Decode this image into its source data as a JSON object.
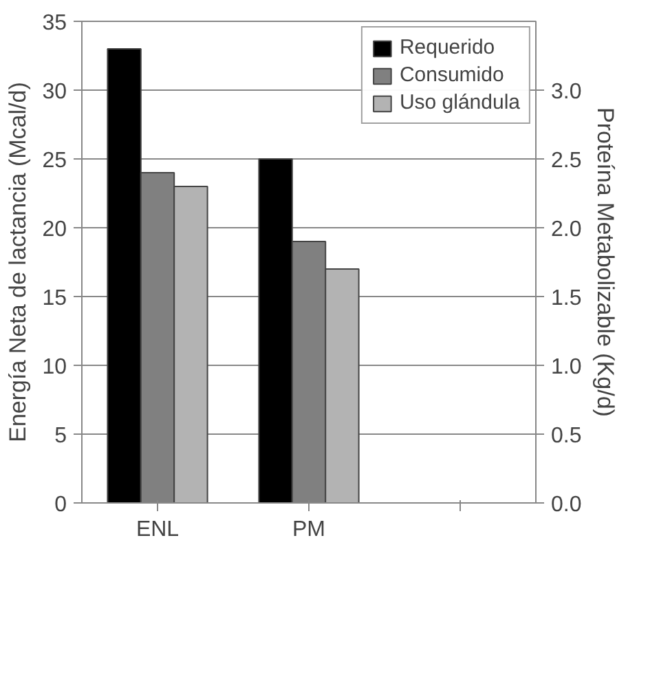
{
  "chart_data": {
    "type": "bar",
    "categories": [
      "ENL",
      "PM",
      null
    ],
    "ylabel": "Energía Neta de lactancia (Mcal/d)",
    "y2label": "Proteína Metabolizable (Kg/d)",
    "ylim": [
      0,
      35
    ],
    "yticks": [
      0,
      5,
      10,
      15,
      20,
      25,
      30,
      35
    ],
    "y2lim": [
      0,
      3.5
    ],
    "y2ticks": [
      {
        "value": 0,
        "label": "0.0"
      },
      {
        "value": 0.5,
        "label": "0.5"
      },
      {
        "value": 1,
        "label": "1.0"
      },
      {
        "value": 1.5,
        "label": "1.5"
      },
      {
        "value": 2,
        "label": "2.0"
      },
      {
        "value": 2.5,
        "label": "2.5"
      },
      {
        "value": 3,
        "label": "3.0"
      }
    ],
    "grid": "y",
    "legend": "top right",
    "series": [
      {
        "name": "Requerido",
        "color": "#000000",
        "values": [
          33,
          null,
          null
        ]
      },
      {
        "name": "Consumido",
        "color": "#808080",
        "values": [
          24,
          null,
          null
        ]
      },
      {
        "name": "Uso glándula",
        "color": "#b3b3b3",
        "values": [
          23,
          null,
          null
        ]
      },
      {
        "color": "#000000",
        "axis": "y2",
        "values": [
          null,
          2.5,
          null
        ]
      },
      {
        "color": "#808080",
        "axis": "y2",
        "values": [
          null,
          1.9,
          null
        ]
      },
      {
        "color": "#b3b3b3",
        "axis": "y2",
        "values": [
          null,
          1.7,
          null
        ]
      }
    ]
  }
}
